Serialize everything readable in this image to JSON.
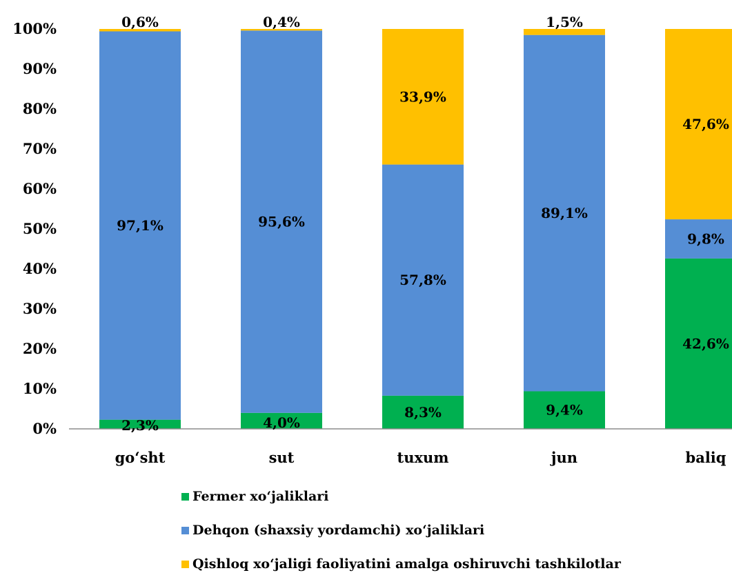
{
  "chart_data": {
    "type": "bar",
    "stacked": true,
    "percent_stacked": true,
    "categories": [
      "go‘sht",
      "sut",
      "tuxum",
      "jun",
      "baliq"
    ],
    "series": [
      {
        "name": "Fermer xo‘jaliklari",
        "color": "#00B050",
        "values": [
          2.3,
          4.0,
          8.3,
          9.4,
          42.6
        ],
        "labels": [
          "2,3%",
          "4,0%",
          "8,3%",
          "9,4%",
          "42,6%"
        ]
      },
      {
        "name": "Dehqon (shaxsiy yordamchi) xo‘jaliklari",
        "color": "#558ED5",
        "values": [
          97.1,
          95.6,
          57.8,
          89.1,
          9.8
        ],
        "labels": [
          "97,1%",
          "95,6%",
          "57,8%",
          "89,1%",
          "9,8%"
        ]
      },
      {
        "name": "Qishloq xo‘jaligi faoliyatini amalga oshiruvchi tashkilotlar",
        "color": "#FFC000",
        "values": [
          0.6,
          0.4,
          33.9,
          1.5,
          47.6
        ],
        "labels": [
          "0,6%",
          "0,4%",
          "33,9%",
          "1,5%",
          "47,6%"
        ]
      }
    ],
    "yticks": [
      "0%",
      "10%",
      "20%",
      "30%",
      "40%",
      "50%",
      "60%",
      "70%",
      "80%",
      "90%",
      "100%"
    ],
    "ylim": [
      0,
      100
    ],
    "grid": false,
    "legend_position": "bottom"
  }
}
